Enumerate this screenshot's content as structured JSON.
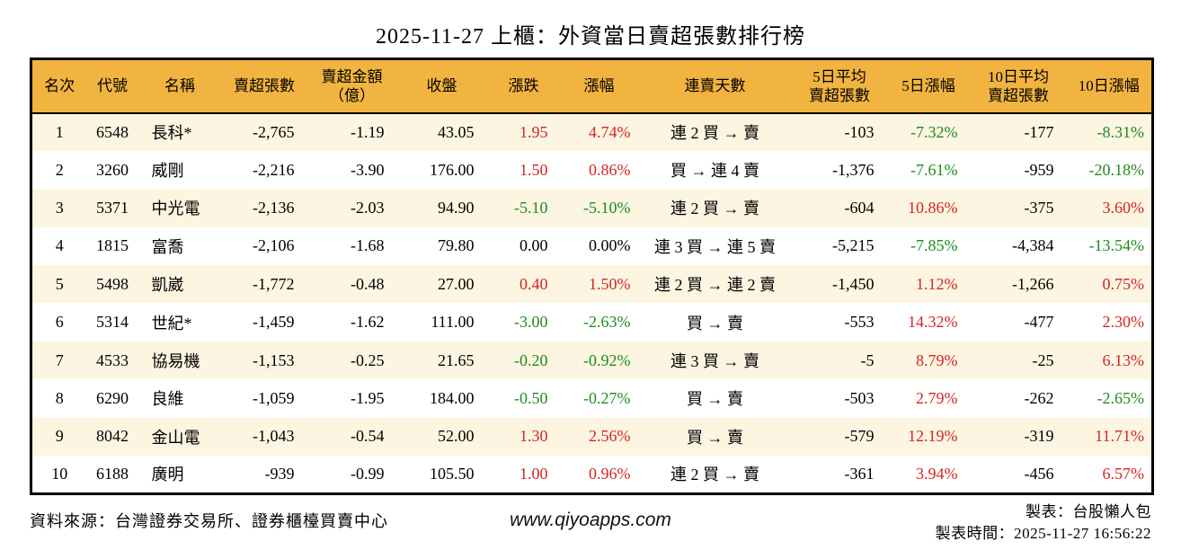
{
  "title": "2025-11-27 上櫃：外資當日賣超張數排行榜",
  "colors": {
    "header_bg": "#F2B440",
    "row_odd": "#FCF5E1",
    "up": "#D42525",
    "down": "#1F8A1F",
    "border": "#000000"
  },
  "table": {
    "col_names": [
      "rank",
      "stock-code",
      "stock-name",
      "net-sell-shares",
      "net-sell-amount-100m",
      "close-price",
      "price-change",
      "change-pct",
      "streak-days",
      "avg5-net-sell",
      "pct-5d",
      "avg10-net-sell",
      "pct-10d"
    ],
    "headers": [
      "名次",
      "代號",
      "名稱",
      "賣超張數",
      "賣超金額\n（億）",
      "收盤",
      "漲跌",
      "漲幅",
      "連賣天數",
      "5日平均\n賣超張數",
      "5日漲幅",
      "10日平均\n賣超張數",
      "10日漲幅"
    ],
    "rows": [
      {
        "cells": [
          {
            "t": "1"
          },
          {
            "t": "6548"
          },
          {
            "t": "長科*"
          },
          {
            "t": "-2,765"
          },
          {
            "t": "-1.19"
          },
          {
            "t": "43.05"
          },
          {
            "t": "1.95",
            "c": "up"
          },
          {
            "t": "4.74%",
            "c": "up"
          },
          {
            "t": "連 2 買 → 賣"
          },
          {
            "t": "-103"
          },
          {
            "t": "-7.32%",
            "c": "down"
          },
          {
            "t": "-177"
          },
          {
            "t": "-8.31%",
            "c": "down"
          }
        ]
      },
      {
        "cells": [
          {
            "t": "2"
          },
          {
            "t": "3260"
          },
          {
            "t": "威剛"
          },
          {
            "t": "-2,216"
          },
          {
            "t": "-3.90"
          },
          {
            "t": "176.00"
          },
          {
            "t": "1.50",
            "c": "up"
          },
          {
            "t": "0.86%",
            "c": "up"
          },
          {
            "t": "買 → 連 4 賣"
          },
          {
            "t": "-1,376"
          },
          {
            "t": "-7.61%",
            "c": "down"
          },
          {
            "t": "-959"
          },
          {
            "t": "-20.18%",
            "c": "down"
          }
        ]
      },
      {
        "cells": [
          {
            "t": "3"
          },
          {
            "t": "5371"
          },
          {
            "t": "中光電"
          },
          {
            "t": "-2,136"
          },
          {
            "t": "-2.03"
          },
          {
            "t": "94.90"
          },
          {
            "t": "-5.10",
            "c": "down"
          },
          {
            "t": "-5.10%",
            "c": "down"
          },
          {
            "t": "連 2 買 → 賣"
          },
          {
            "t": "-604"
          },
          {
            "t": "10.86%",
            "c": "up"
          },
          {
            "t": "-375"
          },
          {
            "t": "3.60%",
            "c": "up"
          }
        ]
      },
      {
        "cells": [
          {
            "t": "4"
          },
          {
            "t": "1815"
          },
          {
            "t": "富喬"
          },
          {
            "t": "-2,106"
          },
          {
            "t": "-1.68"
          },
          {
            "t": "79.80"
          },
          {
            "t": "0.00"
          },
          {
            "t": "0.00%"
          },
          {
            "t": "連 3 買 → 連 5 賣"
          },
          {
            "t": "-5,215"
          },
          {
            "t": "-7.85%",
            "c": "down"
          },
          {
            "t": "-4,384"
          },
          {
            "t": "-13.54%",
            "c": "down"
          }
        ]
      },
      {
        "cells": [
          {
            "t": "5"
          },
          {
            "t": "5498"
          },
          {
            "t": "凱崴"
          },
          {
            "t": "-1,772"
          },
          {
            "t": "-0.48"
          },
          {
            "t": "27.00"
          },
          {
            "t": "0.40",
            "c": "up"
          },
          {
            "t": "1.50%",
            "c": "up"
          },
          {
            "t": "連 2 買 → 連 2 賣"
          },
          {
            "t": "-1,450"
          },
          {
            "t": "1.12%",
            "c": "up"
          },
          {
            "t": "-1,266"
          },
          {
            "t": "0.75%",
            "c": "up"
          }
        ]
      },
      {
        "cells": [
          {
            "t": "6"
          },
          {
            "t": "5314"
          },
          {
            "t": "世紀*"
          },
          {
            "t": "-1,459"
          },
          {
            "t": "-1.62"
          },
          {
            "t": "111.00"
          },
          {
            "t": "-3.00",
            "c": "down"
          },
          {
            "t": "-2.63%",
            "c": "down"
          },
          {
            "t": "買 → 賣"
          },
          {
            "t": "-553"
          },
          {
            "t": "14.32%",
            "c": "up"
          },
          {
            "t": "-477"
          },
          {
            "t": "2.30%",
            "c": "up"
          }
        ]
      },
      {
        "cells": [
          {
            "t": "7"
          },
          {
            "t": "4533"
          },
          {
            "t": "協易機"
          },
          {
            "t": "-1,153"
          },
          {
            "t": "-0.25"
          },
          {
            "t": "21.65"
          },
          {
            "t": "-0.20",
            "c": "down"
          },
          {
            "t": "-0.92%",
            "c": "down"
          },
          {
            "t": "連 3 買 → 賣"
          },
          {
            "t": "-5"
          },
          {
            "t": "8.79%",
            "c": "up"
          },
          {
            "t": "-25"
          },
          {
            "t": "6.13%",
            "c": "up"
          }
        ]
      },
      {
        "cells": [
          {
            "t": "8"
          },
          {
            "t": "6290"
          },
          {
            "t": "良維"
          },
          {
            "t": "-1,059"
          },
          {
            "t": "-1.95"
          },
          {
            "t": "184.00"
          },
          {
            "t": "-0.50",
            "c": "down"
          },
          {
            "t": "-0.27%",
            "c": "down"
          },
          {
            "t": "買 → 賣"
          },
          {
            "t": "-503"
          },
          {
            "t": "2.79%",
            "c": "up"
          },
          {
            "t": "-262"
          },
          {
            "t": "-2.65%",
            "c": "down"
          }
        ]
      },
      {
        "cells": [
          {
            "t": "9"
          },
          {
            "t": "8042"
          },
          {
            "t": "金山電"
          },
          {
            "t": "-1,043"
          },
          {
            "t": "-0.54"
          },
          {
            "t": "52.00"
          },
          {
            "t": "1.30",
            "c": "up"
          },
          {
            "t": "2.56%",
            "c": "up"
          },
          {
            "t": "買 → 賣"
          },
          {
            "t": "-579"
          },
          {
            "t": "12.19%",
            "c": "up"
          },
          {
            "t": "-319"
          },
          {
            "t": "11.71%",
            "c": "up"
          }
        ]
      },
      {
        "cells": [
          {
            "t": "10"
          },
          {
            "t": "6188"
          },
          {
            "t": "廣明"
          },
          {
            "t": "-939"
          },
          {
            "t": "-0.99"
          },
          {
            "t": "105.50"
          },
          {
            "t": "1.00",
            "c": "up"
          },
          {
            "t": "0.96%",
            "c": "up"
          },
          {
            "t": "連 2 買 → 賣"
          },
          {
            "t": "-361"
          },
          {
            "t": "3.94%",
            "c": "up"
          },
          {
            "t": "-456"
          },
          {
            "t": "6.57%",
            "c": "up"
          }
        ]
      }
    ]
  },
  "footer": {
    "source": "資料來源：台灣證券交易所、證券櫃檯買賣中心",
    "website": "www.qiyoapps.com",
    "made_by": "製表：台股懶人包",
    "made_time": "製表時間：2025-11-27 16:56:22"
  }
}
